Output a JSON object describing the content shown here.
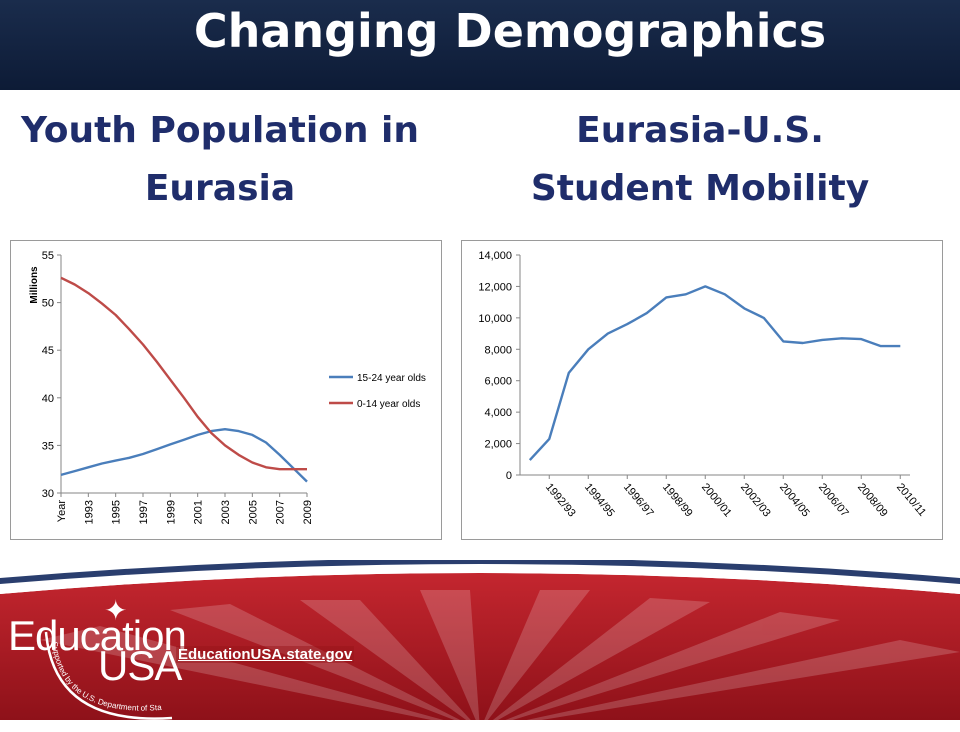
{
  "header": {
    "title": "Changing Demographics"
  },
  "sections": {
    "left_title_line1": "Youth Population in",
    "left_title_line2": "Eurasia",
    "right_title_line1": "Eurasia-U.S.",
    "right_title_line2": "Student Mobility"
  },
  "footer": {
    "logo_word1": "Education",
    "logo_word2": "USA",
    "logo_tagline": "Supported by the U.S. Department of State",
    "site_link": "EducationUSA.state.gov"
  },
  "colors": {
    "navy": "#1f2d6b",
    "blue_series": "#4a7ebb",
    "red_series": "#be4b48",
    "footer_red": "#b3202a"
  },
  "chart_data": [
    {
      "type": "line",
      "title": "",
      "ylabel": "Millions",
      "xlabel": "",
      "ylim": [
        30,
        55
      ],
      "yticks": [
        30,
        35,
        40,
        45,
        50,
        55
      ],
      "xtick_labels": [
        "Year",
        "1993",
        "1995",
        "1997",
        "1999",
        "2001",
        "2003",
        "2005",
        "2007",
        "2009"
      ],
      "x": [
        1991,
        1992,
        1993,
        1994,
        1995,
        1996,
        1997,
        1998,
        1999,
        2000,
        2001,
        2002,
        2003,
        2004,
        2005,
        2006,
        2007,
        2008,
        2009
      ],
      "series": [
        {
          "name": "15-24 year olds",
          "color": "#4a7ebb",
          "values": [
            31.9,
            32.3,
            32.7,
            33.1,
            33.4,
            33.7,
            34.1,
            34.6,
            35.1,
            35.6,
            36.1,
            36.5,
            36.7,
            36.5,
            36.1,
            35.3,
            34.0,
            32.6,
            31.2
          ]
        },
        {
          "name": "0-14 year olds",
          "color": "#be4b48",
          "values": [
            52.6,
            51.9,
            51.0,
            49.9,
            48.7,
            47.2,
            45.6,
            43.8,
            41.9,
            40.0,
            38.0,
            36.3,
            35.0,
            34.0,
            33.2,
            32.7,
            32.5,
            32.5,
            32.5
          ]
        }
      ],
      "legend_position": "right",
      "grid": false
    },
    {
      "type": "line",
      "title": "",
      "xlabel": "",
      "ylabel": "",
      "ylim": [
        0,
        14000
      ],
      "yticks": [
        0,
        2000,
        4000,
        6000,
        8000,
        10000,
        12000,
        14000
      ],
      "ytick_labels": [
        "0",
        "2,000",
        "4,000",
        "6,000",
        "8,000",
        "10,000",
        "12,000",
        "14,000"
      ],
      "categories": [
        "1991/92",
        "1992/93",
        "1993/94",
        "1994/95",
        "1995/96",
        "1996/97",
        "1997/98",
        "1998/99",
        "1999/00",
        "2000/01",
        "2001/02",
        "2002/03",
        "2003/04",
        "2004/05",
        "2005/06",
        "2006/07",
        "2007/08",
        "2008/09",
        "2009/10",
        "2010/11"
      ],
      "xtick_labels": [
        "1992/93",
        "1994/95",
        "1996/97",
        "1998/99",
        "2000/01",
        "2002/03",
        "2004/05",
        "2006/07",
        "2008/09",
        "2010/11"
      ],
      "series": [
        {
          "color": "#4a7ebb",
          "values": [
            950,
            2300,
            6500,
            8000,
            9000,
            9600,
            10300,
            11300,
            11500,
            12000,
            11500,
            10600,
            10000,
            8500,
            8400,
            8600,
            8700,
            8650,
            8200,
            8200
          ]
        }
      ],
      "grid": false
    }
  ]
}
